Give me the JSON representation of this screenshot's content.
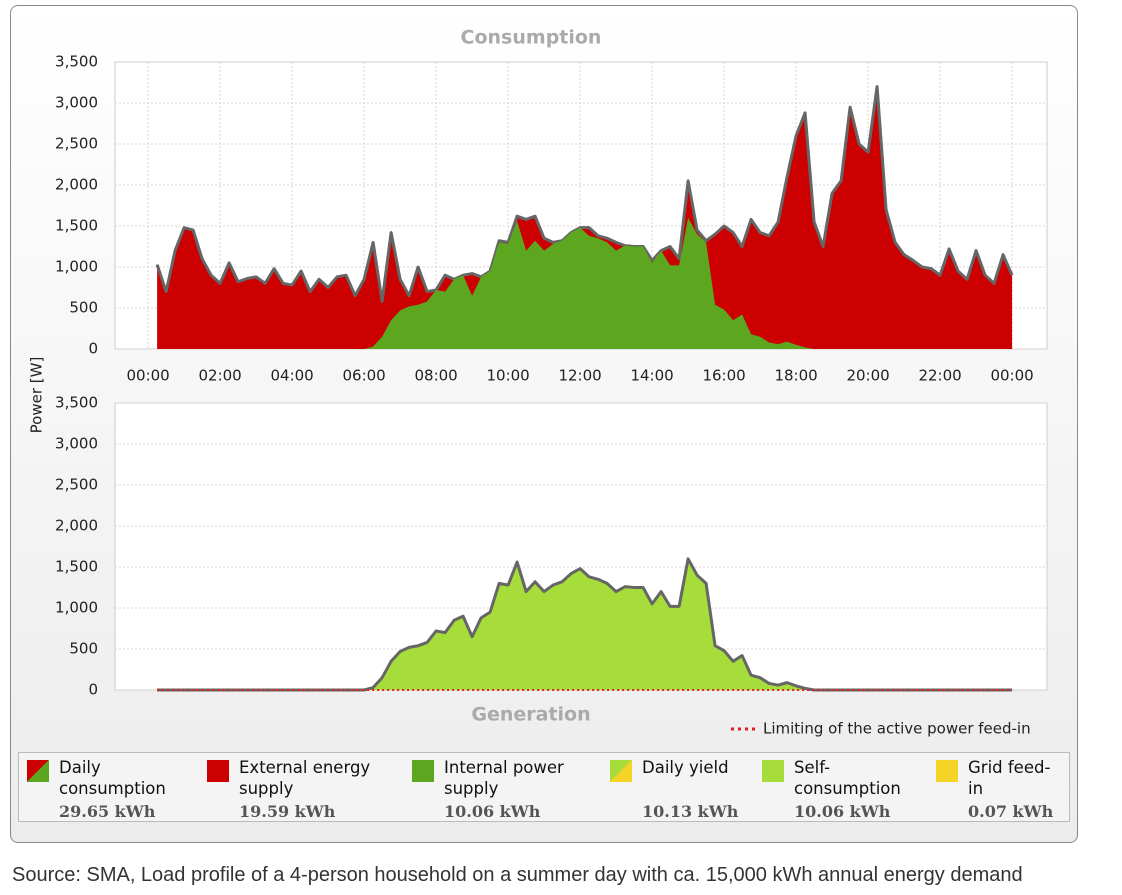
{
  "y_label": "Power [W]",
  "chart_data": [
    {
      "type": "area",
      "title": "Consumption",
      "x": [
        0.25,
        0.5,
        0.75,
        1,
        1.25,
        1.5,
        1.75,
        2,
        2.25,
        2.5,
        2.75,
        3,
        3.25,
        3.5,
        3.75,
        4,
        4.25,
        4.5,
        4.75,
        5,
        5.25,
        5.5,
        5.75,
        6,
        6.25,
        6.5,
        6.75,
        7,
        7.25,
        7.5,
        7.75,
        8,
        8.25,
        8.5,
        8.75,
        9,
        9.25,
        9.5,
        9.75,
        10,
        10.25,
        10.5,
        10.75,
        11,
        11.25,
        11.5,
        11.75,
        12,
        12.25,
        12.5,
        12.75,
        13,
        13.25,
        13.5,
        13.75,
        14,
        14.25,
        14.5,
        14.75,
        15,
        15.25,
        15.5,
        15.75,
        16,
        16.25,
        16.5,
        16.75,
        17,
        17.25,
        17.5,
        17.75,
        18,
        18.25,
        18.5,
        18.75,
        19,
        19.25,
        19.5,
        19.75,
        20,
        20.25,
        20.5,
        20.75,
        21,
        21.25,
        21.5,
        21.75,
        22,
        22.25,
        22.5,
        22.75,
        23,
        23.25,
        23.5,
        23.75,
        24
      ],
      "series": [
        {
          "color": "#cc0000",
          "line_color": "#666666",
          "values": [
            1030,
            700,
            1200,
            1480,
            1450,
            1100,
            900,
            800,
            1050,
            820,
            860,
            880,
            800,
            980,
            800,
            780,
            950,
            700,
            850,
            750,
            880,
            900,
            650,
            850,
            1300,
            580,
            1420,
            850,
            650,
            1000,
            700,
            720,
            900,
            850,
            900,
            920,
            880,
            950,
            1320,
            1300,
            1620,
            1580,
            1620,
            1350,
            1300,
            1320,
            1420,
            1480,
            1480,
            1380,
            1350,
            1300,
            1260,
            1250,
            1250,
            1080,
            1200,
            1250,
            1100,
            2050,
            1450,
            1320,
            1400,
            1500,
            1420,
            1250,
            1580,
            1420,
            1380,
            1550,
            2100,
            2600,
            2880,
            1550,
            1250,
            1900,
            2050,
            2950,
            2500,
            2400,
            3200,
            1700,
            1300,
            1150,
            1080,
            1000,
            980,
            900,
            1220,
            950,
            850,
            1200,
            900,
            800,
            1150,
            900
          ]
        },
        {
          "color": "#5ca71f",
          "values": [
            0,
            0,
            0,
            0,
            0,
            0,
            0,
            0,
            0,
            0,
            0,
            0,
            0,
            0,
            0,
            0,
            0,
            0,
            0,
            0,
            0,
            0,
            0,
            0,
            30,
            150,
            350,
            470,
            520,
            540,
            580,
            720,
            700,
            850,
            900,
            650,
            880,
            950,
            1300,
            1280,
            1560,
            1200,
            1320,
            1200,
            1280,
            1320,
            1420,
            1480,
            1380,
            1350,
            1300,
            1200,
            1260,
            1250,
            1250,
            1050,
            1200,
            1020,
            1020,
            1600,
            1400,
            1300,
            540,
            480,
            350,
            420,
            180,
            150,
            80,
            60,
            90,
            50,
            20,
            0,
            0,
            0,
            0,
            0,
            0,
            0,
            0,
            0,
            0,
            0,
            0,
            0,
            0,
            0,
            0,
            0,
            0,
            0,
            0,
            0,
            0,
            0
          ]
        }
      ],
      "xlim": [
        -0.92,
        24.97
      ],
      "xticks": [
        {
          "value": 0,
          "label": "00:00"
        },
        {
          "value": 2,
          "label": "02:00"
        },
        {
          "value": 4,
          "label": "04:00"
        },
        {
          "value": 6,
          "label": "06:00"
        },
        {
          "value": 8,
          "label": "08:00"
        },
        {
          "value": 10,
          "label": "10:00"
        },
        {
          "value": 12,
          "label": "12:00"
        },
        {
          "value": 14,
          "label": "14:00"
        },
        {
          "value": 16,
          "label": "16:00"
        },
        {
          "value": 18,
          "label": "18:00"
        },
        {
          "value": 20,
          "label": "20:00"
        },
        {
          "value": 22,
          "label": "22:00"
        },
        {
          "value": 24,
          "label": "00:00"
        }
      ],
      "ylim": [
        0,
        3500
      ],
      "yticks": [
        0,
        500,
        {
          "value": 1000,
          "label": "1,000"
        },
        {
          "value": 1500,
          "label": "1,500"
        },
        {
          "value": 2000,
          "label": "2,000"
        },
        {
          "value": 2500,
          "label": "2,500"
        },
        {
          "value": 3000,
          "label": "3,000"
        },
        {
          "value": 3500,
          "label": "3,500"
        }
      ],
      "grid": true
    },
    {
      "type": "area",
      "title": "Generation",
      "x": [
        0.25,
        0.5,
        0.75,
        1,
        1.25,
        1.5,
        1.75,
        2,
        2.25,
        2.5,
        2.75,
        3,
        3.25,
        3.5,
        3.75,
        4,
        4.25,
        4.5,
        4.75,
        5,
        5.25,
        5.5,
        5.75,
        6,
        6.25,
        6.5,
        6.75,
        7,
        7.25,
        7.5,
        7.75,
        8,
        8.25,
        8.5,
        8.75,
        9,
        9.25,
        9.5,
        9.75,
        10,
        10.25,
        10.5,
        10.75,
        11,
        11.25,
        11.5,
        11.75,
        12,
        12.25,
        12.5,
        12.75,
        13,
        13.25,
        13.5,
        13.75,
        14,
        14.25,
        14.5,
        14.75,
        15,
        15.25,
        15.5,
        15.75,
        16,
        16.25,
        16.5,
        16.75,
        17,
        17.25,
        17.5,
        17.75,
        18,
        18.25,
        18.5,
        18.75,
        19,
        19.25,
        19.5,
        19.75,
        20,
        20.25,
        20.5,
        20.75,
        21,
        21.25,
        21.5,
        21.75,
        22,
        22.25,
        22.5,
        22.75,
        23,
        23.25,
        23.5,
        23.75,
        24
      ],
      "series": [
        {
          "color": "#a6dd3a",
          "line_color": "#666666",
          "values": [
            0,
            0,
            0,
            0,
            0,
            0,
            0,
            0,
            0,
            0,
            0,
            0,
            0,
            0,
            0,
            0,
            0,
            0,
            0,
            0,
            0,
            0,
            0,
            0,
            30,
            150,
            350,
            470,
            520,
            540,
            580,
            720,
            700,
            850,
            900,
            650,
            880,
            950,
            1300,
            1280,
            1560,
            1200,
            1320,
            1200,
            1280,
            1320,
            1420,
            1480,
            1380,
            1350,
            1300,
            1200,
            1260,
            1250,
            1250,
            1050,
            1200,
            1020,
            1020,
            1600,
            1400,
            1300,
            540,
            480,
            350,
            420,
            180,
            150,
            80,
            60,
            90,
            50,
            20,
            0,
            0,
            0,
            0,
            0,
            0,
            0,
            0,
            0,
            0,
            0,
            0,
            0,
            0,
            0,
            0,
            0,
            0,
            0,
            0,
            0,
            0,
            0
          ]
        }
      ],
      "limit_line": {
        "label": "Limiting of the active power feed-in",
        "value": 0,
        "color": "#e02020"
      },
      "xlim": [
        -0.92,
        24.97
      ],
      "ylim": [
        0,
        3500
      ],
      "yticks": [
        0,
        500,
        {
          "value": 1000,
          "label": "1,000"
        },
        {
          "value": 1500,
          "label": "1,500"
        },
        {
          "value": 2000,
          "label": "2,000"
        },
        {
          "value": 2500,
          "label": "2,500"
        },
        {
          "value": 3000,
          "label": "3,000"
        },
        {
          "value": 3500,
          "label": "3,500"
        }
      ],
      "grid": true
    }
  ],
  "legend": [
    {
      "label": "Daily consumption",
      "total": "29.65 kWh",
      "colors": [
        "#cc0000",
        "#5ca71f"
      ]
    },
    {
      "label": "External energy supply",
      "total": "19.59 kWh",
      "colors": [
        "#cc0000"
      ]
    },
    {
      "label": "Internal power supply",
      "total": "10.06 kWh",
      "colors": [
        "#5ca71f"
      ]
    },
    {
      "label": "Daily yield",
      "total": "10.13 kWh",
      "colors": [
        "#a6dd3a",
        "#f5d327"
      ]
    },
    {
      "label": "Self-consumption",
      "total": "10.06 kWh",
      "colors": [
        "#a6dd3a"
      ]
    },
    {
      "label": "Grid feed-in",
      "total": "0.07 kWh",
      "colors": [
        "#f5d327"
      ]
    }
  ],
  "source": "Source: SMA, Load profile of a 4-person household on a summer day  with ca. 15,000 kWh annual energy demand"
}
